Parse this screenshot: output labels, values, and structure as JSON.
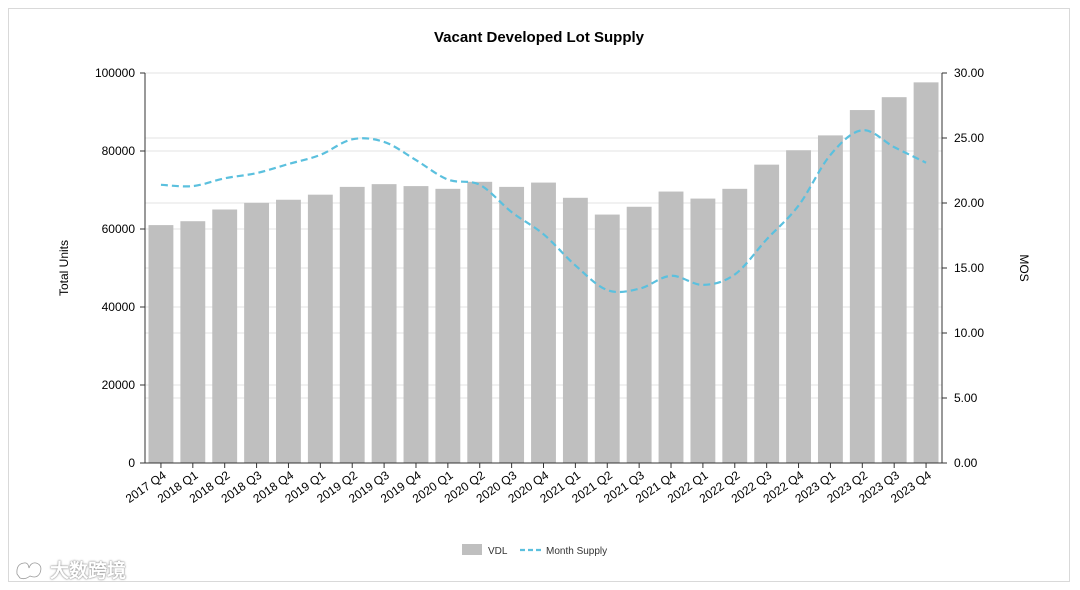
{
  "chart_data": {
    "type": "bar",
    "title": "Vacant Developed Lot Supply",
    "ylabel": "Total Units",
    "y2label": "MOS",
    "ylim": [
      0,
      100000
    ],
    "y2lim": [
      0,
      30
    ],
    "yticks": [
      "0",
      "20000",
      "40000",
      "60000",
      "80000",
      "100000"
    ],
    "y2ticks": [
      "0.00",
      "5.00",
      "10.00",
      "15.00",
      "20.00",
      "25.00",
      "30.00"
    ],
    "grid": true,
    "legend": "bottom-center",
    "categories": [
      "2017 Q4",
      "2018 Q1",
      "2018 Q2",
      "2018 Q3",
      "2018 Q4",
      "2019 Q1",
      "2019 Q2",
      "2019 Q3",
      "2019 Q4",
      "2020 Q1",
      "2020 Q2",
      "2020 Q3",
      "2020 Q4",
      "2021 Q1",
      "2021 Q2",
      "2021 Q3",
      "2021 Q4",
      "2022 Q1",
      "2022 Q2",
      "2022 Q3",
      "2022 Q4",
      "2023 Q1",
      "2023 Q2",
      "2023 Q3",
      "2023 Q4"
    ],
    "series": [
      {
        "name": "VDL",
        "type": "bar",
        "axis": "left",
        "color": "#bfbfbf",
        "values": [
          61000,
          62000,
          65000,
          66700,
          67500,
          68800,
          70800,
          71500,
          71000,
          70300,
          72100,
          70800,
          71900,
          68000,
          63700,
          65700,
          69600,
          67800,
          70300,
          76500,
          80200,
          84000,
          90500,
          93800,
          97600
        ]
      },
      {
        "name": "Month Supply",
        "type": "line",
        "axis": "right",
        "color": "#5bc0de",
        "dash": true,
        "values": [
          21.4,
          21.3,
          21.9,
          22.3,
          23.0,
          23.7,
          24.9,
          24.7,
          23.3,
          21.8,
          21.4,
          19.3,
          17.6,
          15.2,
          13.3,
          13.4,
          14.4,
          13.7,
          14.5,
          17.2,
          19.8,
          23.7,
          25.6,
          24.3,
          23.1
        ]
      }
    ]
  },
  "watermark": {
    "text": "大数跨境"
  }
}
